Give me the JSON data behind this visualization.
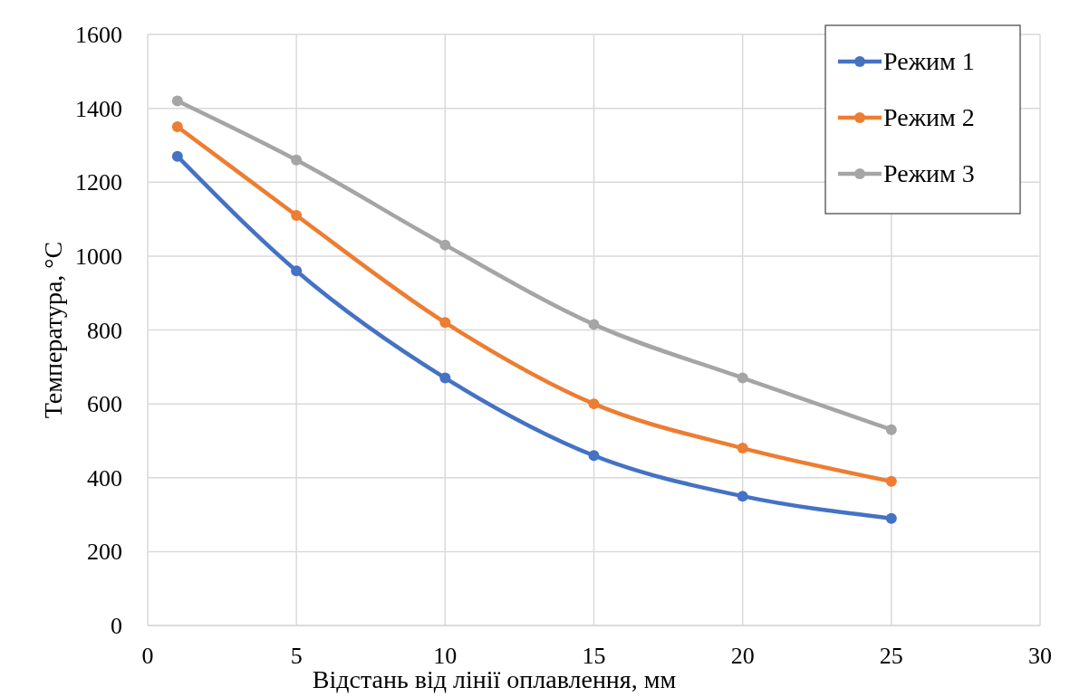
{
  "chart_data": {
    "type": "line",
    "xlabel": "Відстань від лінії оплавлення, мм",
    "ylabel": "Температура, °C",
    "x": [
      1,
      5,
      10,
      15,
      20,
      25
    ],
    "series": [
      {
        "name": "Режим 1",
        "color": "#4472c4",
        "values": [
          1270,
          960,
          670,
          460,
          350,
          290
        ]
      },
      {
        "name": "Режим 2",
        "color": "#ed7d31",
        "values": [
          1350,
          1110,
          820,
          600,
          480,
          390
        ]
      },
      {
        "name": "Режим 3",
        "color": "#a5a5a5",
        "values": [
          1420,
          1260,
          1030,
          815,
          670,
          530
        ]
      }
    ],
    "xlim": [
      0,
      30
    ],
    "xticks": [
      0,
      5,
      10,
      15,
      20,
      25,
      30
    ],
    "ylim": [
      0,
      1600
    ],
    "yticks": [
      0,
      200,
      400,
      600,
      800,
      1000,
      1200,
      1400,
      1600
    ],
    "grid": true,
    "legend": "top right",
    "marker": "circle",
    "line_style": "solid"
  }
}
